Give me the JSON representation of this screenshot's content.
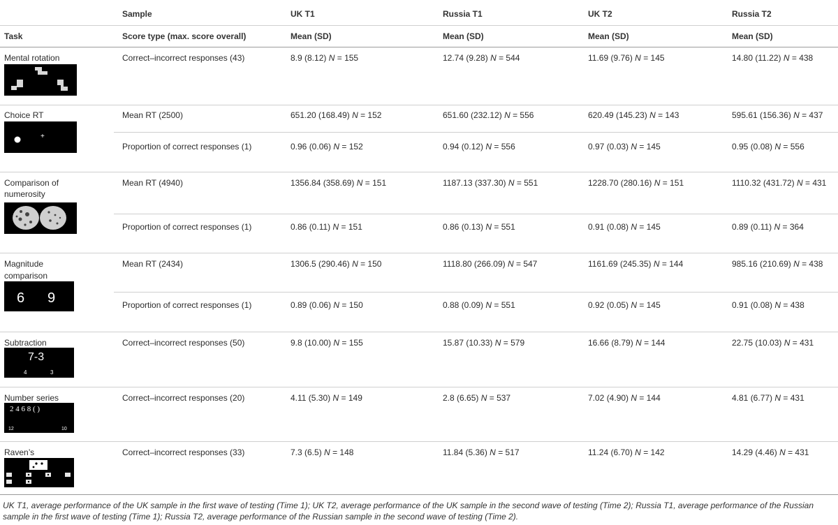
{
  "header": {
    "sample_label": "Sample",
    "task_label": "Task",
    "score_type_label": "Score type (max. score overall)",
    "columns": [
      "UK T1",
      "Russia T1",
      "UK T2",
      "Russia T2"
    ],
    "stat_label": "Mean (SD)"
  },
  "tasks": [
    {
      "name": "Mental rotation",
      "rows": [
        {
          "score": "Correct–incorrect responses (43)",
          "v": [
            "8.9 (8.12)",
            "12.74 (9.28)",
            "11.69 (9.76)",
            "14.80 (11.22)"
          ],
          "n": [
            "= 155",
            "= 544",
            "= 145",
            "= 438"
          ]
        }
      ]
    },
    {
      "name": "Choice RT",
      "rows": [
        {
          "score": "Mean RT (2500)",
          "v": [
            "651.20 (168.49)",
            "651.60 (232.12)",
            "620.49 (145.23)",
            "595.61 (156.36)"
          ],
          "n": [
            "= 152",
            "= 556",
            "= 143",
            "= 437"
          ]
        },
        {
          "score": "Proportion of correct responses (1)",
          "v": [
            "0.96 (0.06)",
            "0.94 (0.12)",
            "0.97 (0.03)",
            "0.95 (0.08)"
          ],
          "n": [
            "= 152",
            "= 556",
            "= 145",
            "= 556"
          ]
        }
      ]
    },
    {
      "name": "Comparison of",
      "name2": "numerosity",
      "rows": [
        {
          "score": "Mean RT (4940)",
          "v": [
            "1356.84 (358.69)",
            "1187.13 (337.30)",
            "1228.70 (280.16)",
            "1110.32 (431.72)"
          ],
          "n": [
            "= 151",
            "= 551",
            "= 151",
            "= 431"
          ]
        },
        {
          "score": "Proportion of correct responses (1)",
          "v": [
            "0.86 (0.11)",
            "0.86 (0.13)",
            "0.91 (0.08)",
            "0.89 (0.11)"
          ],
          "n": [
            "= 151",
            "= 551",
            "= 145",
            "= 364"
          ]
        }
      ]
    },
    {
      "name": "Magnitude",
      "name2": "comparison",
      "rows": [
        {
          "score": "Mean RT (2434)",
          "v": [
            "1306.5 (290.46)",
            "1118.80 (266.09)",
            "1161.69 (245.35)",
            "985.16 (210.69)"
          ],
          "n": [
            "= 150",
            "= 547",
            "= 144",
            "= 438"
          ]
        },
        {
          "score": "Proportion of correct responses (1)",
          "v": [
            "0.89 (0.06)",
            "0.88 (0.09)",
            "0.92 (0.05)",
            "0.91 (0.08)"
          ],
          "n": [
            "= 150",
            "= 551",
            "= 145",
            "= 438"
          ]
        }
      ]
    },
    {
      "name": "Subtraction",
      "rows": [
        {
          "score": "Correct–incorrect responses (50)",
          "v": [
            "9.8 (10.00)",
            "15.87 (10.33)",
            "16.66 (8.79)",
            "22.75 (10.03)"
          ],
          "n": [
            "= 155",
            "= 579",
            "= 144",
            "= 431"
          ]
        }
      ]
    },
    {
      "name": "Number series",
      "rows": [
        {
          "score": "Correct–incorrect responses (20)",
          "v": [
            "4.11 (5.30)",
            "2.8 (6.65)",
            "7.02 (4.90)",
            "4.81 (6.77)"
          ],
          "n": [
            "= 149",
            "= 537",
            "= 144",
            "= 431"
          ]
        }
      ]
    },
    {
      "name": "Raven’s",
      "rows": [
        {
          "score": "Correct–incorrect responses (33)",
          "v": [
            "7.3 (6.5)",
            "11.84 (5.36)",
            "11.24 (6.70)",
            "14.29 (4.46)"
          ],
          "n": [
            "= 148",
            "= 517",
            "= 142",
            "= 431"
          ]
        }
      ]
    }
  ],
  "stimuli": {
    "magnitude_left": "6",
    "magnitude_right": "9",
    "subtraction_problem": "7-3",
    "subtraction_opt1": "4",
    "subtraction_opt2": "3",
    "series_seq": "2 4 6 8 ( )",
    "series_opt1": "12",
    "series_opt2": "10",
    "choice_cross": "+"
  },
  "n_symbol": "N",
  "footnote": [
    "UK T1, average performance of the UK sample in the first wave of testing (Time 1); UK T2, average performance of the UK sample in the second wave of testing (Time 2); Russia T1, average performance of the Russian",
    "sample in the first wave of testing (Time 1); Russia T2, average performance of the Russian sample in the second wave of testing (Time 2)."
  ]
}
